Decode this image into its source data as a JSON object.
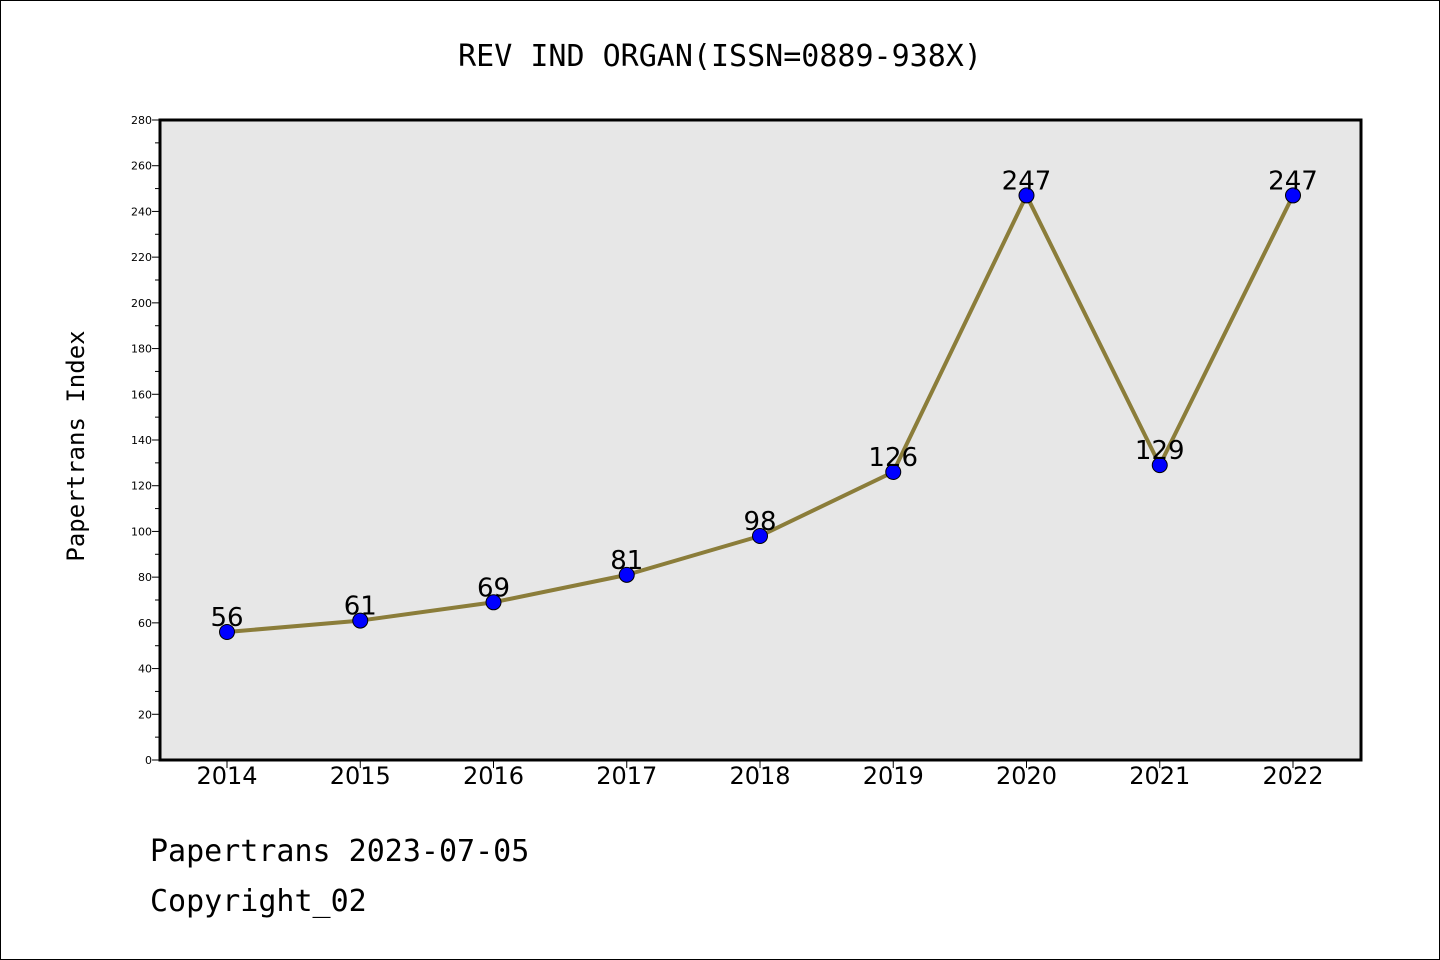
{
  "footer": {
    "line1": "Papertrans 2023-07-05",
    "line2": "Copyright_02"
  },
  "colors": {
    "plot_background": "#e7e7e7",
    "line": "#8b7d3a",
    "marker": "#0000ff"
  },
  "chart_data": {
    "type": "line",
    "title": "REV IND ORGAN(ISSN=0889-938X)",
    "xlabel": "",
    "ylabel": "Papertrans Index",
    "categories": [
      "2014",
      "2015",
      "2016",
      "2017",
      "2018",
      "2019",
      "2020",
      "2021",
      "2022"
    ],
    "series": [
      {
        "values": [
          56,
          61,
          69,
          81,
          98,
          126,
          247,
          129,
          247
        ]
      }
    ],
    "ylim": [
      0,
      280
    ],
    "yticks": [
      0,
      20,
      40,
      60,
      80,
      100,
      120,
      140,
      160,
      180,
      200,
      220,
      240,
      260,
      280
    ],
    "grid": false,
    "legend": "none",
    "data_labels": true
  }
}
